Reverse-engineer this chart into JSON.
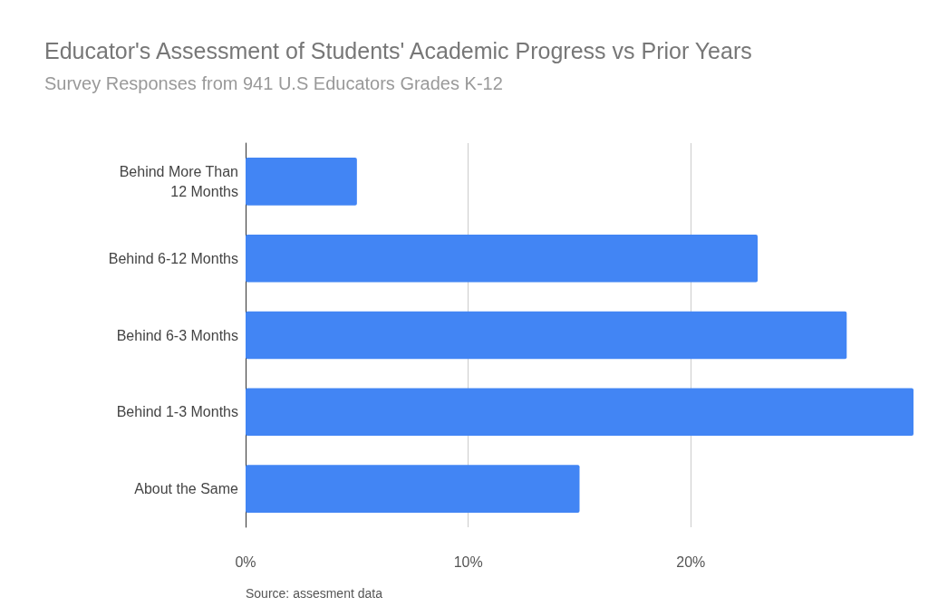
{
  "chart_data": {
    "type": "bar",
    "orientation": "horizontal",
    "title": "Educator's Assessment of Students' Academic Progress vs Prior Years",
    "subtitle": "Survey Responses from 941 U.S Educators Grades K-12",
    "categories": [
      "Behind More Than\n12 Months",
      "Behind 6-12 Months",
      "Behind 6-3 Months",
      "Behind 1-3 Months",
      "About the Same"
    ],
    "values": [
      5,
      23,
      27,
      30,
      15
    ],
    "color": "#4285f4",
    "xlim": [
      0,
      30
    ],
    "xticks": [
      {
        "value": 0,
        "label": "0%"
      },
      {
        "value": 10,
        "label": "10%"
      },
      {
        "value": 20,
        "label": "20%"
      }
    ],
    "grid": "x",
    "annotations": [
      "Source: assesment data"
    ]
  }
}
